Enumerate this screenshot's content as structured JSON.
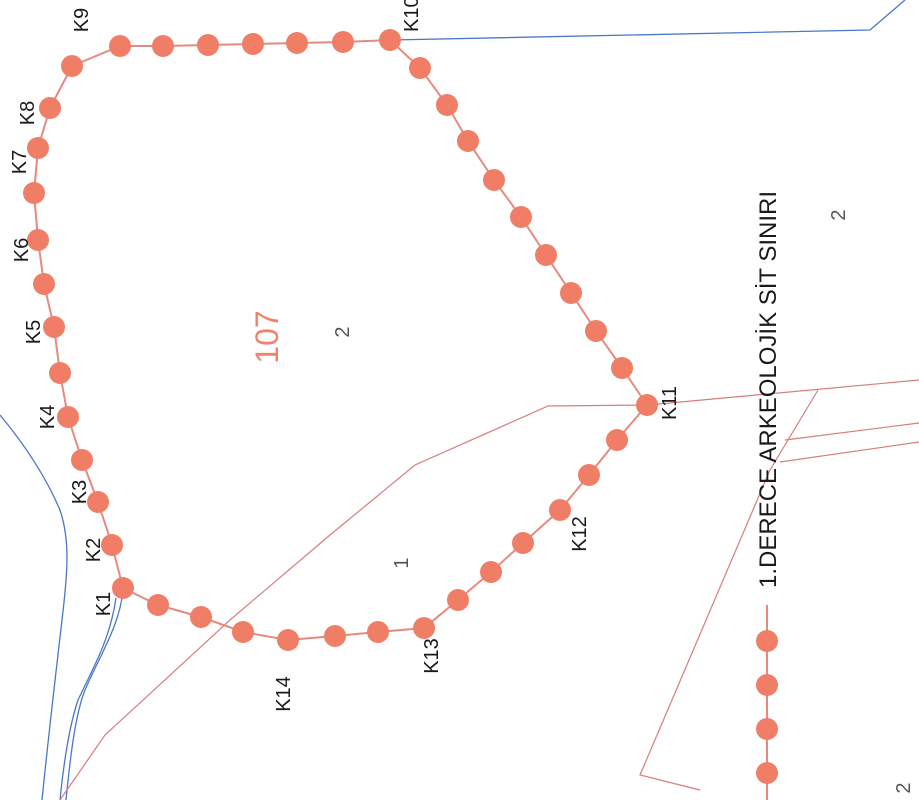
{
  "map": {
    "parcel_main": "107",
    "parcel_numbers": [
      "2",
      "2",
      "1",
      "2"
    ],
    "vertex_labels": [
      "K1",
      "K2",
      "K3",
      "K4",
      "K5",
      "K6",
      "K7",
      "K8",
      "K9",
      "K10",
      "K11",
      "K12",
      "K13",
      "K14"
    ],
    "legend": {
      "label": "1.DERECE ARKEOLOJİK SİT SINIRI"
    },
    "colors": {
      "boundary": "#f07e66",
      "boundary_line": "#e58a80",
      "parcel_line": "#d97c7c",
      "water_line": "#4a78c8",
      "text": "#1a1a1a"
    }
  }
}
